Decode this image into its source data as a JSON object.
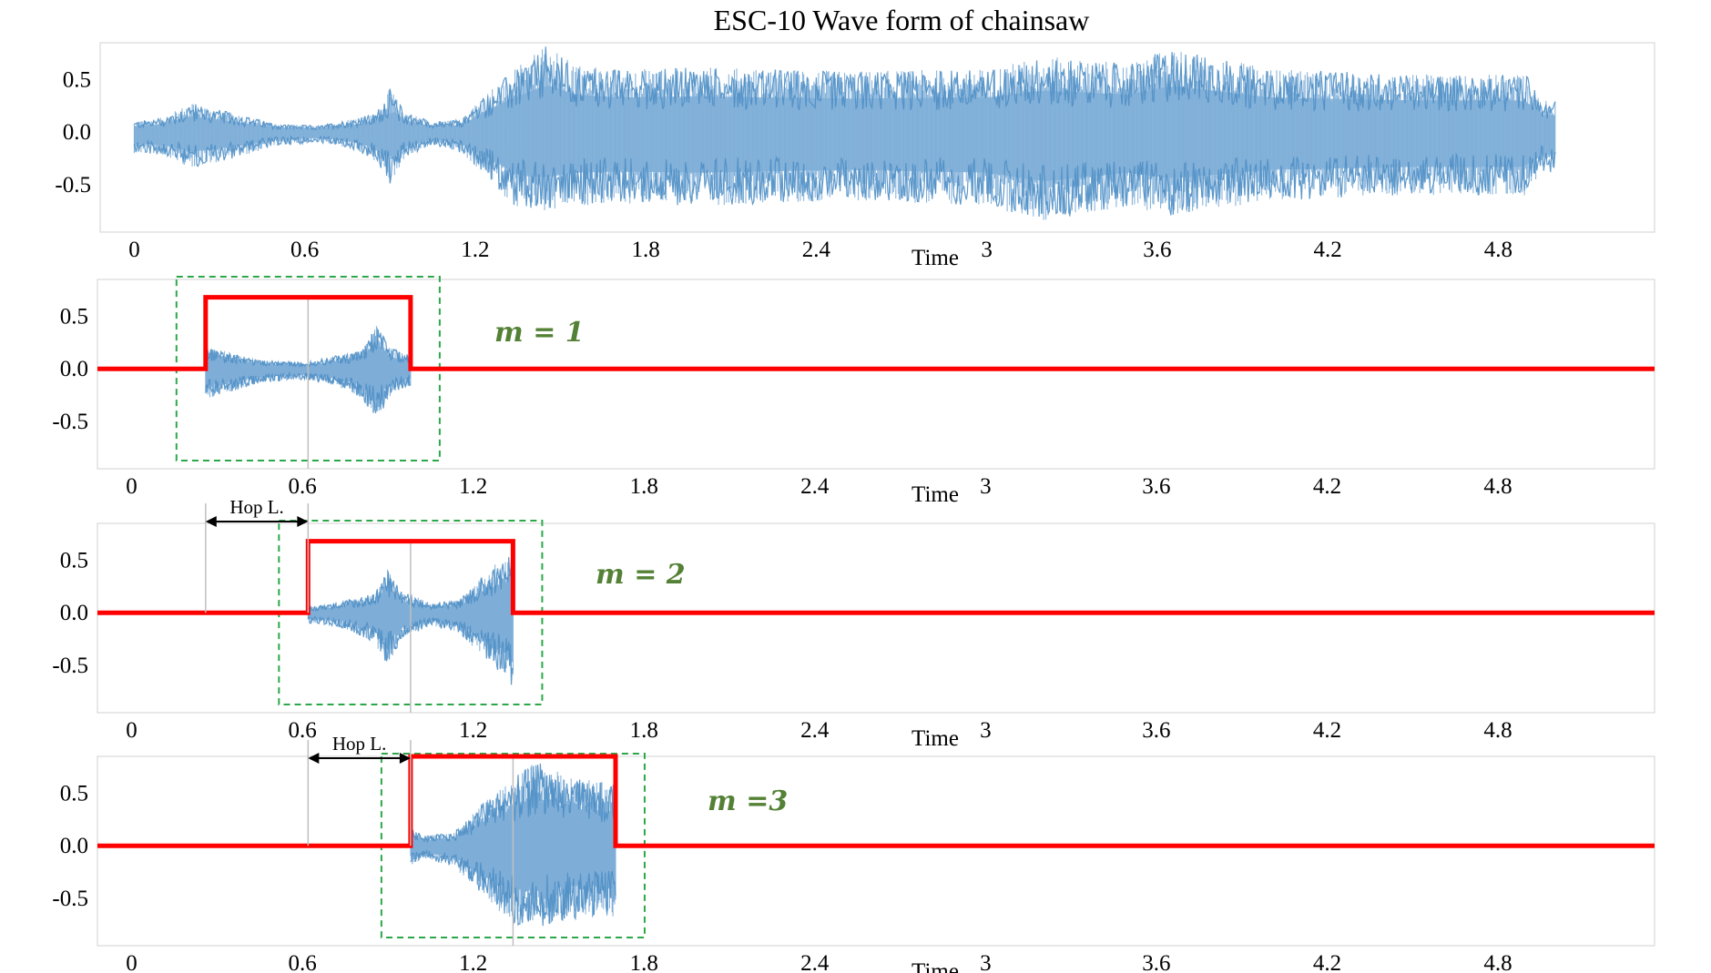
{
  "chart_data": [
    {
      "type": "line",
      "panel": "full-waveform",
      "title": "ESC-10 Wave form of chainsaw",
      "xlabel": "Time",
      "ylabel": "",
      "xlim": [
        -0.12,
        5.35
      ],
      "ylim": [
        -0.95,
        0.85
      ],
      "x_tick_labels": [
        "0",
        "0.6",
        "1.2",
        "1.8",
        "2.4",
        "3",
        "3.6",
        "4.2",
        "4.8"
      ],
      "y_tick_labels": [
        "0.5",
        "0.0",
        "-0.5"
      ],
      "waveform_color": "#1f77b4",
      "envelope": {
        "x": [
          0.0,
          0.1,
          0.2,
          0.35,
          0.5,
          0.65,
          0.75,
          0.85,
          0.9,
          0.95,
          1.05,
          1.15,
          1.25,
          1.35,
          1.45,
          1.55,
          1.7,
          2.0,
          2.5,
          3.0,
          3.2,
          3.5,
          3.65,
          4.0,
          4.5,
          4.9,
          4.95,
          5.0
        ],
        "top": [
          0.1,
          0.14,
          0.28,
          0.18,
          0.08,
          0.06,
          0.12,
          0.18,
          0.42,
          0.2,
          0.1,
          0.12,
          0.4,
          0.62,
          0.82,
          0.65,
          0.6,
          0.62,
          0.58,
          0.6,
          0.72,
          0.65,
          0.8,
          0.6,
          0.55,
          0.55,
          0.3,
          0.3
        ],
        "bottom": [
          -0.2,
          -0.22,
          -0.34,
          -0.25,
          -0.13,
          -0.1,
          -0.15,
          -0.28,
          -0.5,
          -0.25,
          -0.12,
          -0.2,
          -0.45,
          -0.75,
          -0.78,
          -0.7,
          -0.68,
          -0.7,
          -0.65,
          -0.7,
          -0.85,
          -0.7,
          -0.8,
          -0.65,
          -0.6,
          -0.6,
          -0.38,
          -0.38
        ]
      }
    },
    {
      "type": "line",
      "panel": "frame-1",
      "xlabel": "Time",
      "annotation": "m = 1",
      "xlim": [
        -0.12,
        5.35
      ],
      "ylim": [
        -0.95,
        0.85
      ],
      "x_tick_labels": [
        "0",
        "0.6",
        "1.2",
        "1.8",
        "2.4",
        "3",
        "3.6",
        "4.2",
        "4.8"
      ],
      "y_tick_labels": [
        "0.5",
        "0.0",
        "-0.5"
      ],
      "window_start": 0.26,
      "window_end": 0.98,
      "window_height": 0.68,
      "window_color": "#ff0000",
      "frame_box_color": "#2ca84a"
    },
    {
      "type": "line",
      "panel": "frame-2",
      "xlabel": "Time",
      "annotation": "m = 2",
      "hop_label": "Hop L.",
      "xlim": [
        -0.12,
        5.35
      ],
      "ylim": [
        -0.95,
        0.85
      ],
      "x_tick_labels": [
        "0",
        "0.6",
        "1.2",
        "1.8",
        "2.4",
        "3",
        "3.6",
        "4.2",
        "4.8"
      ],
      "y_tick_labels": [
        "0.5",
        "0.0",
        "-0.5"
      ],
      "window_start": 0.62,
      "window_end": 1.34,
      "window_height": 0.68,
      "window_color": "#ff0000",
      "frame_box_color": "#2ca84a"
    },
    {
      "type": "line",
      "panel": "frame-3",
      "xlabel": "Time",
      "annotation": "m =3",
      "hop_label": "Hop L.",
      "xlim": [
        -0.12,
        5.35
      ],
      "ylim": [
        -0.95,
        0.85
      ],
      "x_tick_labels": [
        "0",
        "0.6",
        "1.2",
        "1.8",
        "2.4",
        "3",
        "3.6",
        "4.2",
        "4.8"
      ],
      "y_tick_labels": [
        "0.5",
        "0.0",
        "-0.5"
      ],
      "window_start": 0.98,
      "window_end": 1.7,
      "window_height": 0.85,
      "window_color": "#ff0000",
      "frame_box_color": "#2ca84a"
    }
  ]
}
